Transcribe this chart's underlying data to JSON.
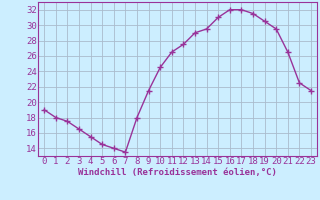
{
  "x": [
    0,
    1,
    2,
    3,
    4,
    5,
    6,
    7,
    8,
    9,
    10,
    11,
    12,
    13,
    14,
    15,
    16,
    17,
    18,
    19,
    20,
    21,
    22,
    23
  ],
  "y": [
    19,
    18,
    17.5,
    16.5,
    15.5,
    14.5,
    14,
    13.5,
    18,
    21.5,
    24.5,
    26.5,
    27.5,
    29,
    29.5,
    31,
    32,
    32,
    31.5,
    30.5,
    29.5,
    26.5,
    22.5,
    21.5
  ],
  "line_color": "#993399",
  "marker": "+",
  "bg_color": "#cceeff",
  "grid_color": "#aabbcc",
  "xlabel": "Windchill (Refroidissement éolien,°C)",
  "ylim": [
    13,
    33
  ],
  "yticks": [
    14,
    16,
    18,
    20,
    22,
    24,
    26,
    28,
    30,
    32
  ],
  "xlim": [
    -0.5,
    23.5
  ],
  "xticks": [
    0,
    1,
    2,
    3,
    4,
    5,
    6,
    7,
    8,
    9,
    10,
    11,
    12,
    13,
    14,
    15,
    16,
    17,
    18,
    19,
    20,
    21,
    22,
    23
  ],
  "xlabel_fontsize": 6.5,
  "tick_fontsize": 6.5,
  "line_width": 1.0,
  "marker_size": 4,
  "marker_edge_width": 1.0
}
